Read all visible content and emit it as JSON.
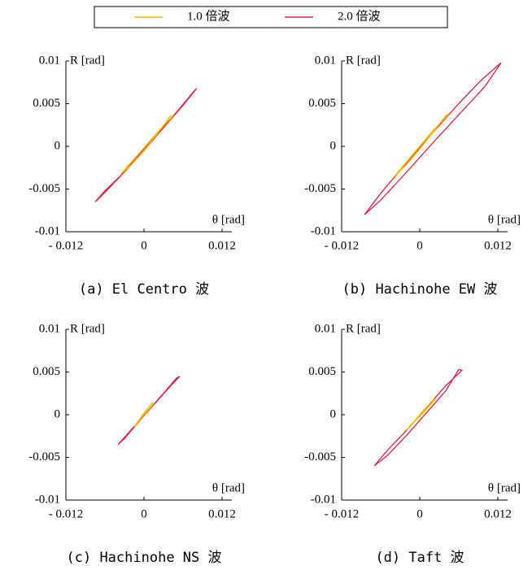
{
  "chart_data": [
    {
      "type": "line",
      "title": "(a) El Centro 波",
      "xlabel": "θ [rad]",
      "ylabel": "R [rad]",
      "xlim": [
        -0.012,
        0.012
      ],
      "ylim": [
        -0.01,
        0.01
      ],
      "xticks": [
        {
          "value": -0.012,
          "label": "- 0.012"
        },
        0,
        0.012
      ],
      "yticks": [
        0.01,
        0.005,
        0,
        -0.005,
        -0.01
      ],
      "series": [
        {
          "name": "1.0 倍波",
          "color": "#f5b800",
          "x": [
            -0.0035,
            -0.002,
            0,
            0.002,
            0.0045,
            0.004,
            0.002,
            0,
            -0.002,
            -0.0035
          ],
          "values": [
            -0.0032,
            -0.0019,
            -0.0002,
            0.0016,
            0.0036,
            0.0035,
            0.0014,
            -0.0005,
            -0.0022,
            -0.0032
          ]
        },
        {
          "name": "2.0 倍波",
          "color": "#d62440",
          "x": [
            -0.0075,
            -0.006,
            -0.003,
            0,
            0.003,
            0.006,
            0.0081,
            0.0075,
            0.005,
            0.002,
            -0.001,
            -0.004,
            -0.0068,
            -0.0075
          ],
          "values": [
            -0.0065,
            -0.0052,
            -0.003,
            -0.0005,
            0.0022,
            0.0048,
            0.0068,
            0.0063,
            0.004,
            0.0014,
            -0.0012,
            -0.0038,
            -0.006,
            -0.0065
          ]
        }
      ]
    },
    {
      "type": "line",
      "title": "(b) Hachinohe EW 波",
      "xlabel": "θ [rad]",
      "ylabel": "R [rad]",
      "xlim": [
        -0.012,
        0.012
      ],
      "ylim": [
        -0.01,
        0.01
      ],
      "xticks": [
        {
          "value": -0.012,
          "label": "- 0.012"
        },
        0,
        0.012
      ],
      "yticks": [
        0.01,
        0.005,
        0,
        -0.005,
        -0.01
      ],
      "series": [
        {
          "color": "#f5b800",
          "x": [
            -0.004,
            -0.002,
            0,
            0.002,
            0.0045,
            0.004,
            0.002,
            0,
            -0.002,
            -0.004
          ],
          "values": [
            -0.0036,
            -0.0018,
            0,
            0.0018,
            0.0038,
            0.0036,
            0.0016,
            -0.0003,
            -0.0021,
            -0.0036
          ]
        },
        {
          "color": "#d62440",
          "x": [
            -0.0085,
            -0.006,
            -0.002,
            0.002,
            0.006,
            0.0095,
            0.0125,
            0.01,
            0.006,
            0.002,
            -0.002,
            -0.006,
            -0.0085
          ],
          "values": [
            -0.008,
            -0.0055,
            -0.0019,
            0.0016,
            0.005,
            0.0078,
            0.0098,
            0.007,
            0.0037,
            0.0004,
            -0.003,
            -0.0063,
            -0.008
          ]
        }
      ]
    },
    {
      "type": "line",
      "title": "(c) Hachinohe NS 波",
      "xlabel": "θ [rad]",
      "ylabel": "R [rad]",
      "xlim": [
        -0.012,
        0.012
      ],
      "ylim": [
        -0.01,
        0.01
      ],
      "xticks": [
        {
          "value": -0.012,
          "label": "- 0.012"
        },
        0,
        0.012
      ],
      "yticks": [
        0.01,
        0.005,
        0,
        -0.005,
        -0.01
      ],
      "series": [
        {
          "color": "#f5b800",
          "x": [
            -0.0015,
            0,
            0.0015,
            0.0013,
            -0.0001,
            -0.0015
          ],
          "values": [
            -0.0014,
            0,
            0.0013,
            0.0014,
            0.0001,
            -0.0014
          ]
        },
        {
          "color": "#d62440",
          "x": [
            -0.004,
            -0.002,
            0,
            0.002,
            0.004,
            0.0055,
            0.005,
            0.003,
            0.001,
            -0.001,
            -0.003,
            -0.004
          ],
          "values": [
            -0.0035,
            -0.0018,
            -0.0001,
            0.0016,
            0.0033,
            0.0045,
            0.0043,
            0.0025,
            0.0008,
            -0.001,
            -0.0028,
            -0.0035
          ]
        }
      ]
    },
    {
      "type": "line",
      "title": "(d) Taft 波",
      "xlabel": "θ [rad]",
      "ylabel": "R [rad]",
      "xlim": [
        -0.012,
        0.012
      ],
      "ylim": [
        -0.01,
        0.01
      ],
      "xticks": [
        {
          "value": -0.012,
          "label": "- 0.012"
        },
        0,
        0.012
      ],
      "yticks": [
        0.01,
        0.005,
        0,
        -0.005,
        -0.01
      ],
      "series": [
        {
          "color": "#f5b800",
          "x": [
            -0.002,
            0,
            0.002,
            0.0025,
            0.0005,
            -0.0015,
            -0.002
          ],
          "values": [
            -0.0018,
            0,
            0.0017,
            0.0019,
            0.0002,
            -0.0013,
            -0.0018
          ]
        },
        {
          "color": "#d62440",
          "x": [
            -0.007,
            -0.005,
            -0.002,
            0.001,
            0.004,
            0.0065,
            0.006,
            0.004,
            0.001,
            -0.002,
            -0.005,
            -0.007
          ],
          "values": [
            -0.006,
            -0.0042,
            -0.0018,
            0.0008,
            0.0034,
            0.0052,
            0.0053,
            0.0028,
            0.0002,
            -0.0024,
            -0.0048,
            -0.006
          ]
        }
      ]
    }
  ]
}
